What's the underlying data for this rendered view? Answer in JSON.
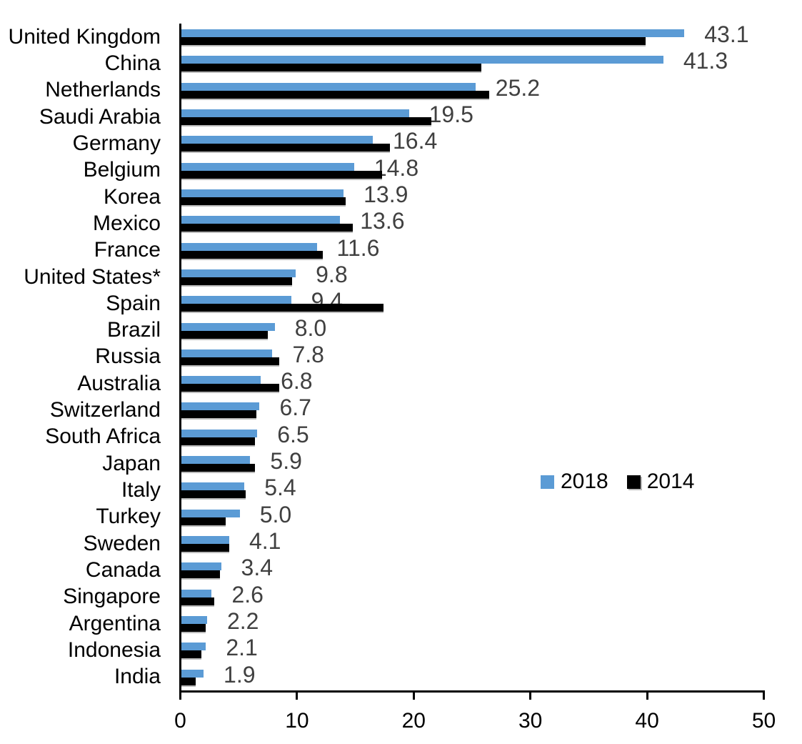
{
  "chart_data": {
    "type": "bar",
    "orientation": "horizontal",
    "title": "",
    "categories": [
      "United Kingdom",
      "China",
      "Netherlands",
      "Saudi Arabia",
      "Germany",
      "Belgium",
      "Korea",
      "Mexico",
      "France",
      "United States*",
      "Spain",
      "Brazil",
      "Russia",
      "Australia",
      "Switzerland",
      "South Africa",
      "Japan",
      "Italy",
      "Turkey",
      "Sweden",
      "Canada",
      "Singapore",
      "Argentina",
      "Indonesia",
      "India"
    ],
    "series": [
      {
        "name": "2018",
        "color": "#5B9BD5",
        "values": [
          43.1,
          41.3,
          25.2,
          19.5,
          16.4,
          14.8,
          13.9,
          13.6,
          11.6,
          9.8,
          9.4,
          8.0,
          7.8,
          6.8,
          6.7,
          6.5,
          5.9,
          5.4,
          5.0,
          4.1,
          3.4,
          2.6,
          2.2,
          2.1,
          1.9
        ]
      },
      {
        "name": "2014",
        "color": "#000000",
        "values": [
          39.8,
          25.7,
          26.4,
          21.4,
          17.9,
          17.2,
          14.1,
          14.7,
          12.1,
          9.5,
          17.3,
          7.4,
          8.4,
          8.4,
          6.4,
          6.3,
          6.3,
          5.5,
          3.8,
          4.1,
          3.3,
          2.8,
          2.1,
          1.7,
          1.2
        ]
      }
    ],
    "data_labels": {
      "series": "2018",
      "values": [
        "43.1",
        "41.3",
        "25.2",
        "19.5",
        "16.4",
        "14.8",
        "13.9",
        "13.6",
        "11.6",
        "9.8",
        "9.4",
        "8.0",
        "7.8",
        "6.8",
        "6.7",
        "6.5",
        "5.9",
        "5.4",
        "5.0",
        "4.1",
        "3.4",
        "2.6",
        "2.2",
        "2.1",
        "1.9"
      ]
    },
    "xlim": [
      0,
      50
    ],
    "x_tick_labels": [
      "0",
      "10",
      "20",
      "30",
      "40",
      "50"
    ],
    "grid": false,
    "legend_position": "middle-right",
    "legend_entries": [
      "2018",
      "2014"
    ]
  },
  "colors": {
    "series_2018": "#5B9BD5",
    "series_2014": "#000000",
    "value_label": "#404040",
    "axis": "#000000"
  }
}
